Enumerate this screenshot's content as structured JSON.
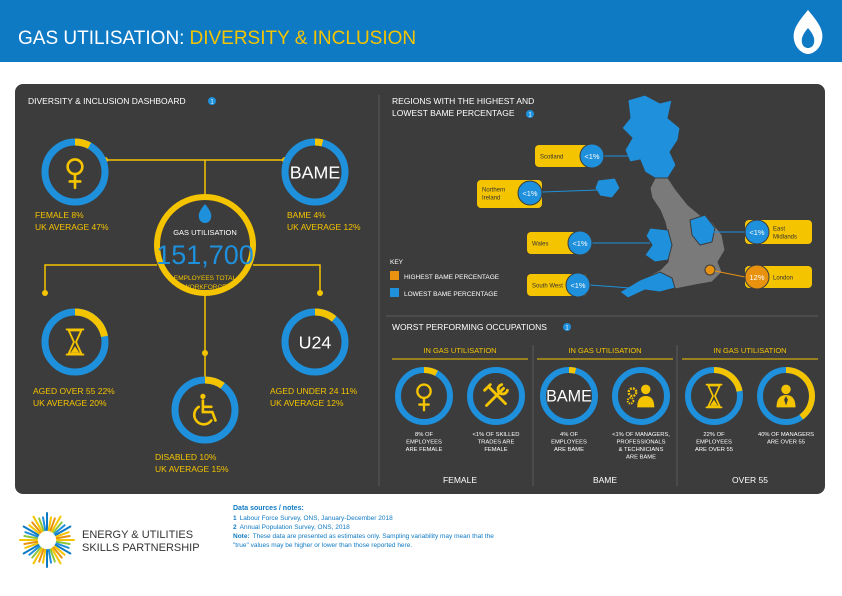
{
  "header": {
    "title": "GAS UTILISATION:",
    "subtitle": "DIVERSITY & INCLUSION"
  },
  "dashboard": {
    "title": "DIVERSITY & INCLUSION DASHBOARD",
    "note": "1",
    "total": {
      "label": "GAS UTILISATION",
      "value": "151,700",
      "caption": [
        "EMPLOYEES TOTAL",
        "WORKFORCE"
      ]
    },
    "metrics": [
      {
        "label": "FEMALE 8%",
        "average": "UK AVERAGE 47%",
        "percent": 8
      },
      {
        "icon_text": "BAME",
        "label": "BAME 4%",
        "average": "UK AVERAGE 12%",
        "percent": 4
      },
      {
        "label": "AGED OVER 55 22%",
        "average": "UK AVERAGE 20%",
        "percent": 22
      },
      {
        "icon_text": "U24",
        "label": "AGED UNDER 24 11%",
        "average": "UK AVERAGE 12%",
        "percent": 11
      },
      {
        "label": "DISABLED 10%",
        "average": "UK AVERAGE 15%",
        "percent": 10
      }
    ]
  },
  "regions": {
    "title": [
      "REGIONS WITH THE HIGHEST AND",
      "LOWEST BAME PERCENTAGE"
    ],
    "note": "1",
    "callouts": [
      {
        "region": [
          "Scotland"
        ],
        "value": "<1%"
      },
      {
        "region": [
          "Northern",
          "Ireland"
        ],
        "value": "<1%"
      },
      {
        "region": [
          "Wales"
        ],
        "value": "<1%"
      },
      {
        "region": [
          "South West"
        ],
        "value": "<1%"
      },
      {
        "region": [
          "East",
          "Midlands"
        ],
        "value": "<1%"
      },
      {
        "region": [
          "London"
        ],
        "value": "12%"
      }
    ],
    "key": {
      "title": "KEY",
      "items": [
        "HIGHEST BAME PERCENTAGE",
        "LOWEST BAME PERCENTAGE"
      ]
    }
  },
  "occupations": {
    "title": "WORST PERFORMING OCCUPATIONS",
    "note": "1",
    "groups": [
      {
        "heading": "IN GAS UTILISATION",
        "label": "FEMALE",
        "items": [
          {
            "caption": [
              "8% OF",
              "EMPLOYEES",
              "ARE FEMALE"
            ],
            "percent": 8
          },
          {
            "caption": [
              "<1% OF SKILLED",
              "TRADES ARE",
              "FEMALE"
            ]
          }
        ]
      },
      {
        "heading": "IN GAS UTILISATION",
        "label": "BAME",
        "items": [
          {
            "icon_text": "BAME",
            "caption": [
              "4% OF",
              "EMPLOYEES",
              "ARE BAME"
            ],
            "percent": 4
          },
          {
            "caption": [
              "<1% OF MANAGERS,",
              "PROFESSIONALS",
              "& TECHNICIANS",
              "ARE BAME"
            ]
          }
        ]
      },
      {
        "heading": "IN GAS UTILISATION",
        "label": "OVER 55",
        "items": [
          {
            "caption": [
              "22% OF",
              "EMPLOYEES",
              "ARE OVER 55"
            ],
            "percent": 22
          },
          {
            "caption": [
              "40% OF MANAGERS",
              "ARE OVER 55"
            ],
            "percent": 40
          }
        ]
      }
    ]
  },
  "footer": {
    "logo": [
      "ENERGY & UTILITIES",
      "SKILLS PARTNERSHIP"
    ],
    "sources_title": "Data sources / notes:",
    "sources": [
      {
        "number": "1",
        "text": "Labour Force Survey, ONS, January-December 2018"
      },
      {
        "number": "2",
        "text": "Annual Population Survey, ONS, 2018"
      }
    ],
    "note_label": "Note:",
    "note": [
      "These data are presented as estimates only. Sampling variability may mean that the",
      "\"true\" values may be higher or lower than those reported here."
    ]
  }
}
